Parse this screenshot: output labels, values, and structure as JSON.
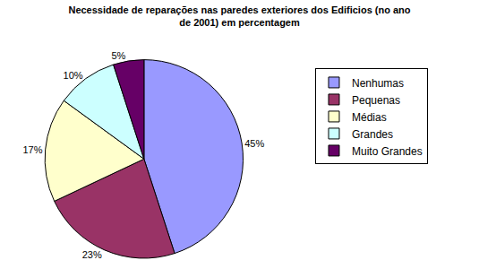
{
  "chart_data": {
    "type": "pie",
    "title": "Necessidade de reparações nas paredes exteriores dos Edificios (no ano\nde 2001) em percentagem",
    "categories": [
      "Nenhumas",
      "Pequenas",
      "Médias",
      "Grandes",
      "Muito Grandes"
    ],
    "values": [
      45,
      23,
      17,
      10,
      5
    ],
    "value_labels": [
      "45%",
      "23%",
      "17%",
      "10%",
      "5%"
    ],
    "colors": [
      "#9999ff",
      "#993366",
      "#ffffcc",
      "#ccffff",
      "#660066"
    ],
    "data_labels": true,
    "legend": "right"
  }
}
